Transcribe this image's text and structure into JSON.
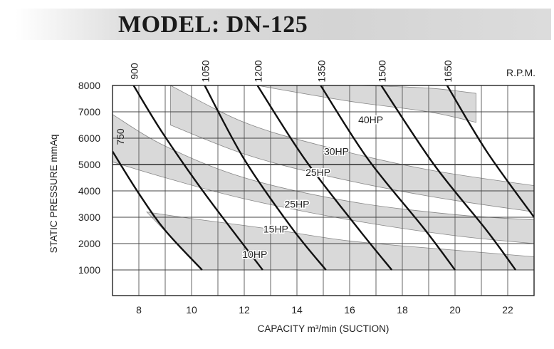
{
  "title": "MODEL: DN-125",
  "chart_data": {
    "type": "line",
    "title": "MODEL: DN-125",
    "xlabel": "CAPACITY m³/min (SUCTION)",
    "ylabel": "STATIC PRESSURE mmAq",
    "xlim": [
      7,
      23
    ],
    "ylim": [
      0,
      8000
    ],
    "x_ticks": [
      "8",
      "10",
      "12",
      "14",
      "16",
      "18",
      "20",
      "22"
    ],
    "y_ticks": [
      "1000",
      "2000",
      "3000",
      "4000",
      "5000",
      "6000",
      "7000",
      "8000"
    ],
    "rpm_unit": "R.P.M.",
    "rpm_curves": [
      {
        "name": "750",
        "x": [
          7.0,
          8.0,
          9.0,
          10.4
        ],
        "y": [
          5500,
          3900,
          2500,
          1000
        ]
      },
      {
        "name": "900",
        "x": [
          7.8,
          8.9,
          10.5,
          12.7
        ],
        "y": [
          8000,
          6200,
          3900,
          1000
        ]
      },
      {
        "name": "1050",
        "x": [
          10.5,
          12.0,
          13.8,
          15.1
        ],
        "y": [
          8000,
          5200,
          2600,
          1000
        ]
      },
      {
        "name": "1200",
        "x": [
          12.5,
          14.3,
          16.3,
          17.6
        ],
        "y": [
          8000,
          5200,
          2600,
          1000
        ]
      },
      {
        "name": "1350",
        "x": [
          14.9,
          16.7,
          18.8,
          20.0
        ],
        "y": [
          8000,
          5200,
          2600,
          1000
        ]
      },
      {
        "name": "1500",
        "x": [
          17.2,
          19.2,
          21.2,
          22.3
        ],
        "y": [
          8000,
          5000,
          2500,
          1000
        ]
      },
      {
        "name": "1650",
        "x": [
          19.7,
          21.2,
          23.0
        ],
        "y": [
          8000,
          5500,
          3000
        ]
      }
    ],
    "hp_bands": [
      {
        "name": "10HP",
        "upper_x": [
          8.3,
          10,
          13,
          16,
          20,
          23
        ],
        "upper_y": [
          3200,
          2950,
          2550,
          2100,
          1750,
          1500
        ],
        "lower_x": [
          10.4,
          13,
          16,
          20,
          23
        ],
        "lower_y": [
          1000,
          1000,
          1000,
          1000,
          1000
        ]
      },
      {
        "name": "15HP / 25HP",
        "upper_x": [
          7,
          9,
          12,
          16,
          20,
          23
        ],
        "upper_y": [
          6900,
          5700,
          4500,
          3600,
          3100,
          2900
        ],
        "lower_x": [
          7,
          9,
          12,
          16,
          20,
          23
        ],
        "lower_y": [
          5100,
          4500,
          3700,
          2900,
          2300,
          2000
        ]
      },
      {
        "name": "25HP / 30HP",
        "upper_x": [
          9.2,
          12,
          15,
          19,
          23
        ],
        "upper_y": [
          8000,
          6600,
          5700,
          4800,
          4200
        ],
        "lower_x": [
          9.2,
          12,
          15,
          19,
          23
        ],
        "lower_y": [
          6500,
          5400,
          4600,
          3800,
          3200
        ]
      },
      {
        "name": "40HP",
        "upper_x": [
          16.4,
          19,
          20.8
        ],
        "upper_y": [
          8000,
          7900,
          7700
        ],
        "lower_x": [
          12.5,
          16,
          19,
          20.8
        ],
        "lower_y": [
          8000,
          7400,
          7000,
          6600
        ]
      }
    ],
    "hp_labels": [
      {
        "text": "10HP",
        "x": 12.4,
        "y": 1600
      },
      {
        "text": "15HP",
        "x": 13.2,
        "y": 2550
      },
      {
        "text": "25HP",
        "x": 14.0,
        "y": 3500
      },
      {
        "text": "25HP",
        "x": 14.8,
        "y": 4700
      },
      {
        "text": "30HP",
        "x": 15.5,
        "y": 5500
      },
      {
        "text": "40HP",
        "x": 16.8,
        "y": 6700
      }
    ],
    "grid": true,
    "band_fill": "#d9d9d9",
    "line_color": "#111111"
  }
}
